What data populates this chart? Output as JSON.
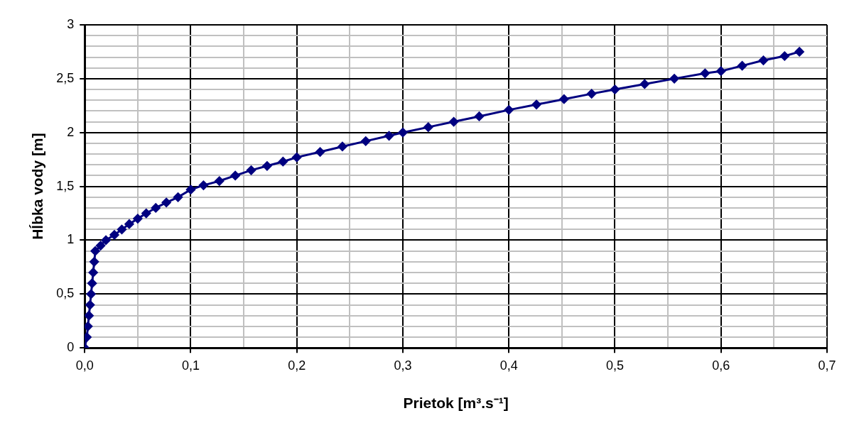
{
  "chart_data": {
    "type": "line",
    "xlabel": "Prietok [m³.s⁻¹]",
    "ylabel": "Hĺbka vody [m]",
    "x": [
      0,
      0.002,
      0.003,
      0.004,
      0.005,
      0.006,
      0.007,
      0.008,
      0.009,
      0.01,
      0.015,
      0.02,
      0.028,
      0.035,
      0.042,
      0.05,
      0.058,
      0.067,
      0.077,
      0.088,
      0.1,
      0.112,
      0.127,
      0.142,
      0.157,
      0.172,
      0.187,
      0.2,
      0.222,
      0.243,
      0.265,
      0.287,
      0.3,
      0.324,
      0.348,
      0.372,
      0.4,
      0.426,
      0.452,
      0.478,
      0.5,
      0.528,
      0.556,
      0.585,
      0.6,
      0.62,
      0.64,
      0.66,
      0.674
    ],
    "series": [
      {
        "color": "#000080",
        "values": [
          0,
          0.1,
          0.2,
          0.3,
          0.4,
          0.5,
          0.6,
          0.7,
          0.8,
          0.9,
          0.95,
          1.0,
          1.05,
          1.1,
          1.15,
          1.2,
          1.25,
          1.3,
          1.35,
          1.4,
          1.47,
          1.51,
          1.55,
          1.6,
          1.65,
          1.69,
          1.73,
          1.77,
          1.82,
          1.87,
          1.92,
          1.97,
          2.0,
          2.05,
          2.1,
          2.15,
          2.21,
          2.26,
          2.31,
          2.36,
          2.4,
          2.45,
          2.5,
          2.55,
          2.57,
          2.62,
          2.67,
          2.71,
          2.75
        ]
      }
    ],
    "xlim": [
      0,
      0.7
    ],
    "xticks": [
      {
        "value": 0,
        "label": "0,0"
      },
      {
        "value": 0.05,
        "label": null
      },
      {
        "value": 0.1,
        "label": "0,1"
      },
      {
        "value": 0.15,
        "label": null
      },
      {
        "value": 0.2,
        "label": "0,2"
      },
      {
        "value": 0.25,
        "label": null
      },
      {
        "value": 0.3,
        "label": "0,3"
      },
      {
        "value": 0.35,
        "label": null
      },
      {
        "value": 0.4,
        "label": "0,4"
      },
      {
        "value": 0.45,
        "label": null
      },
      {
        "value": 0.5,
        "label": "0,5"
      },
      {
        "value": 0.55,
        "label": null
      },
      {
        "value": 0.6,
        "label": "0,6"
      },
      {
        "value": 0.65,
        "label": null
      },
      {
        "value": 0.7,
        "label": "0,7"
      }
    ],
    "ylim": [
      0,
      3
    ],
    "yticks": [
      0,
      {
        "value": 0.1,
        "label": null
      },
      {
        "value": 0.2,
        "label": null
      },
      {
        "value": 0.3,
        "label": null
      },
      {
        "value": 0.4,
        "label": null
      },
      {
        "value": 0.5,
        "label": "0,5"
      },
      {
        "value": 0.6,
        "label": null
      },
      {
        "value": 0.7,
        "label": null
      },
      {
        "value": 0.8,
        "label": null
      },
      {
        "value": 0.9,
        "label": null
      },
      1,
      {
        "value": 1.1,
        "label": null
      },
      {
        "value": 1.2,
        "label": null
      },
      {
        "value": 1.3,
        "label": null
      },
      {
        "value": 1.4,
        "label": null
      },
      {
        "value": 1.5,
        "label": "1,5"
      },
      {
        "value": 1.6,
        "label": null
      },
      {
        "value": 1.7,
        "label": null
      },
      {
        "value": 1.8,
        "label": null
      },
      {
        "value": 1.9,
        "label": null
      },
      2,
      {
        "value": 2.1,
        "label": null
      },
      {
        "value": 2.2,
        "label": null
      },
      {
        "value": 2.3,
        "label": null
      },
      {
        "value": 2.4,
        "label": null
      },
      {
        "value": 2.5,
        "label": "2,5"
      },
      {
        "value": 2.6,
        "label": null
      },
      {
        "value": 2.7,
        "label": null
      },
      {
        "value": 2.8,
        "label": null
      },
      {
        "value": 2.9,
        "label": null
      },
      3
    ],
    "grid": true,
    "legend": false,
    "marker": "diamond",
    "line_style": "solid"
  }
}
